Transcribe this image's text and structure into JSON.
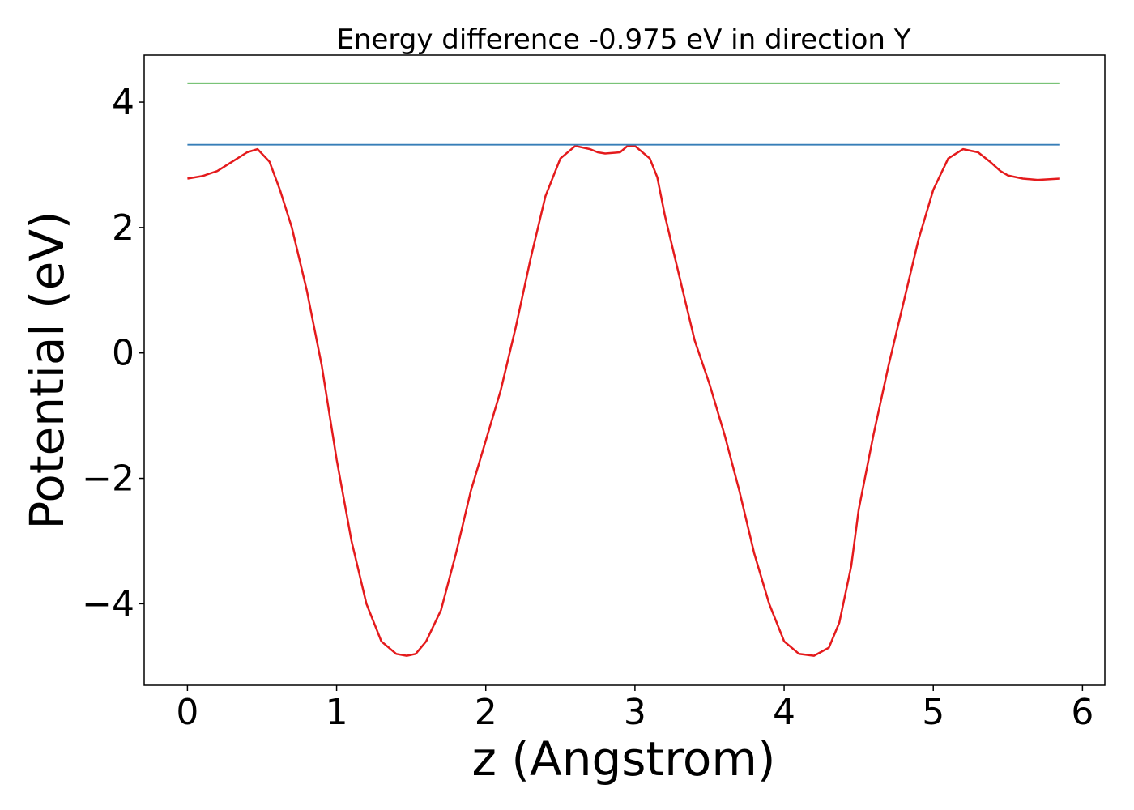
{
  "chart_data": {
    "type": "line",
    "title": "Energy difference -0.975 eV in direction Y",
    "xlabel": "z (Angstrom)",
    "ylabel": "Potential (eV)",
    "xlim": [
      -0.29,
      6.15
    ],
    "ylim": [
      -5.3,
      4.75
    ],
    "x_ticks": [
      0,
      1,
      2,
      3,
      4,
      5,
      6
    ],
    "y_ticks": [
      -4,
      -2,
      0,
      2,
      4
    ],
    "x_tick_labels": [
      "0",
      "1",
      "2",
      "3",
      "4",
      "5",
      "6"
    ],
    "y_tick_labels": [
      "−4",
      "−2",
      "0",
      "2",
      "4"
    ],
    "grid": false,
    "legend": "none",
    "series": [
      {
        "color": "#e41a1c",
        "x": [
          0.0,
          0.1,
          0.2,
          0.3,
          0.4,
          0.47,
          0.55,
          0.62,
          0.7,
          0.8,
          0.9,
          1.0,
          1.1,
          1.2,
          1.3,
          1.4,
          1.47,
          1.53,
          1.6,
          1.7,
          1.8,
          1.9,
          2.0,
          2.1,
          2.2,
          2.3,
          2.4,
          2.5,
          2.6,
          2.7,
          2.75,
          2.8,
          2.9,
          2.95,
          3.0,
          3.1,
          3.15,
          3.2,
          3.3,
          3.4,
          3.5,
          3.6,
          3.7,
          3.8,
          3.9,
          4.0,
          4.1,
          4.2,
          4.3,
          4.37,
          4.45,
          4.5,
          4.6,
          4.7,
          4.8,
          4.9,
          5.0,
          5.1,
          5.2,
          5.3,
          5.38,
          5.45,
          5.5,
          5.6,
          5.7,
          5.85
        ],
        "y": [
          2.78,
          2.82,
          2.9,
          3.05,
          3.2,
          3.25,
          3.05,
          2.6,
          2.0,
          1.0,
          -0.2,
          -1.7,
          -3.0,
          -4.0,
          -4.6,
          -4.8,
          -4.83,
          -4.8,
          -4.6,
          -4.1,
          -3.2,
          -2.2,
          -1.4,
          -0.6,
          0.4,
          1.5,
          2.5,
          3.1,
          3.3,
          3.25,
          3.2,
          3.18,
          3.2,
          3.3,
          3.3,
          3.1,
          2.8,
          2.2,
          1.2,
          0.2,
          -0.5,
          -1.3,
          -2.2,
          -3.2,
          -4.0,
          -4.6,
          -4.8,
          -4.83,
          -4.7,
          -4.3,
          -3.4,
          -2.5,
          -1.3,
          -0.2,
          0.8,
          1.8,
          2.6,
          3.1,
          3.25,
          3.2,
          3.05,
          2.9,
          2.83,
          2.78,
          2.76,
          2.78
        ]
      },
      {
        "color": "#377eb8",
        "x": [
          0.0,
          5.85
        ],
        "y": [
          3.32,
          3.32
        ]
      },
      {
        "color": "#4daf4a",
        "x": [
          0.0,
          5.85
        ],
        "y": [
          4.3,
          4.3
        ]
      }
    ]
  }
}
